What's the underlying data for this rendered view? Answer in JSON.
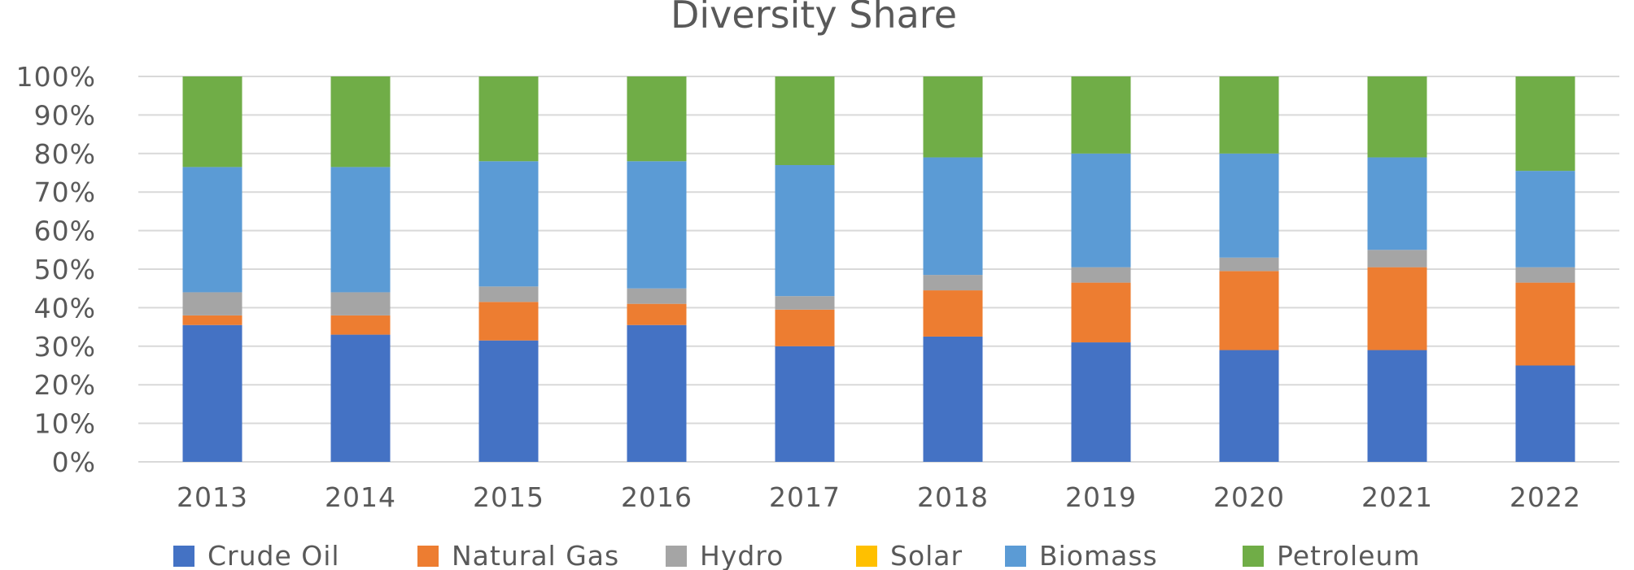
{
  "chart_data": {
    "type": "bar",
    "stacked": true,
    "percent": true,
    "title": "Diversity Share",
    "xlabel": "",
    "ylabel": "",
    "ylim": [
      0,
      100
    ],
    "yticks": [
      "0%",
      "10%",
      "20%",
      "30%",
      "40%",
      "50%",
      "60%",
      "70%",
      "80%",
      "90%",
      "100%"
    ],
    "categories": [
      "2013",
      "2014",
      "2015",
      "2016",
      "2017",
      "2018",
      "2019",
      "2020",
      "2021",
      "2022"
    ],
    "grid": true,
    "legend_position": "bottom",
    "series": [
      {
        "name": "Crude Oil",
        "color": "#4472c4",
        "values": [
          35.5,
          33.0,
          31.5,
          35.5,
          30.0,
          32.5,
          31.0,
          29.0,
          29.0,
          25.0
        ]
      },
      {
        "name": "Natural Gas",
        "color": "#ed7d31",
        "values": [
          2.5,
          5.0,
          10.0,
          5.5,
          9.5,
          12.0,
          15.5,
          20.5,
          21.5,
          21.5
        ]
      },
      {
        "name": "Hydro",
        "color": "#a5a5a5",
        "values": [
          6.0,
          6.0,
          4.0,
          4.0,
          3.5,
          4.0,
          4.0,
          3.5,
          4.5,
          4.0
        ]
      },
      {
        "name": "Solar",
        "color": "#ffc000",
        "values": [
          0,
          0,
          0,
          0,
          0,
          0,
          0,
          0,
          0,
          0
        ]
      },
      {
        "name": "Biomass",
        "color": "#5b9bd5",
        "values": [
          32.5,
          32.5,
          32.5,
          33.0,
          34.0,
          30.5,
          29.5,
          27.0,
          24.0,
          25.0
        ]
      },
      {
        "name": "Petroleum",
        "color": "#70ad47",
        "values": [
          23.5,
          23.5,
          22.0,
          22.0,
          23.0,
          21.0,
          20.0,
          20.0,
          21.0,
          24.5
        ]
      }
    ]
  }
}
